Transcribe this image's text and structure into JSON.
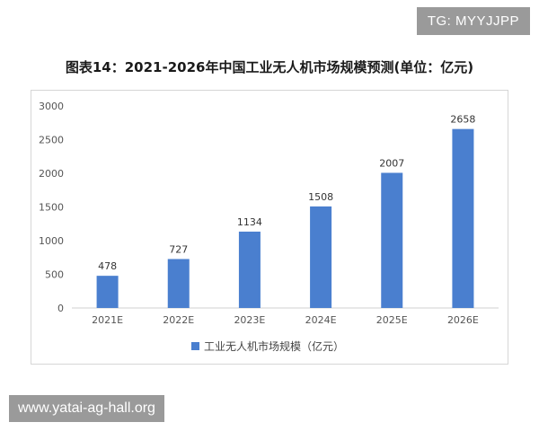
{
  "watermark_top": "TG: MYYJJPP",
  "watermark_bottom": "www.yatai-ag-hall.org",
  "chart_data": {
    "type": "bar",
    "title": "图表14：2021-2026年中国工业无人机市场规模预测(单位：亿元)",
    "categories": [
      "2021E",
      "2022E",
      "2023E",
      "2024E",
      "2025E",
      "2026E"
    ],
    "series": [
      {
        "name": "工业无人机市场规模（亿元）",
        "values": [
          478,
          727,
          1134,
          1508,
          2007,
          2658
        ]
      }
    ],
    "ylim": [
      0,
      3000
    ],
    "yticks": [
      0,
      500,
      1000,
      1500,
      2000,
      2500,
      3000
    ],
    "grid": false,
    "legend": "bottom",
    "bar_color": "#4a7fcf"
  }
}
